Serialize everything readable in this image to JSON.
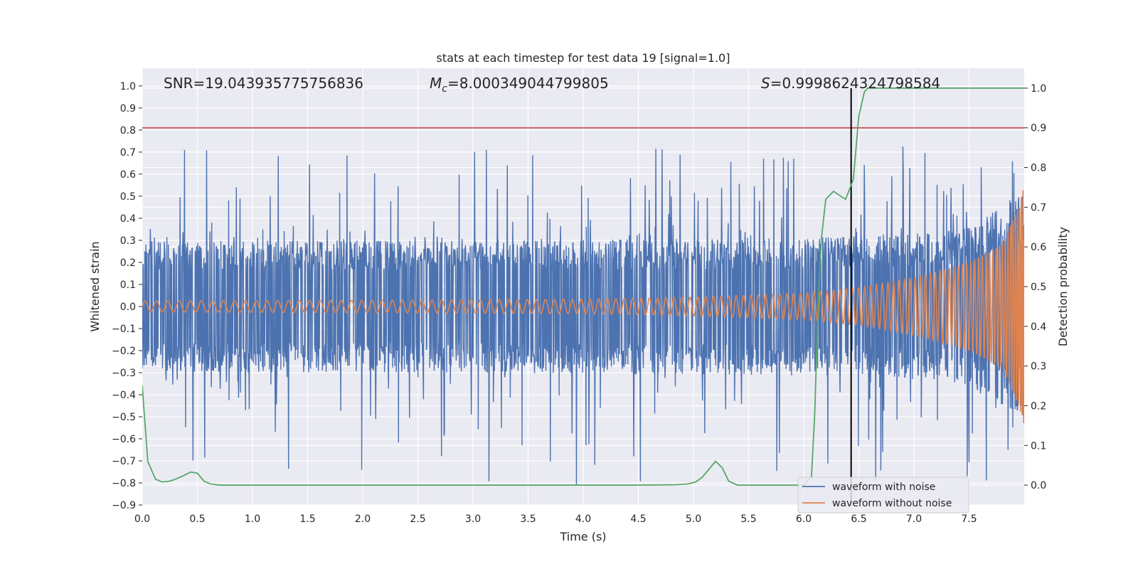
{
  "chart_data": {
    "type": "line",
    "title": "stats at each timestep for test data 19 [signal=1.0]",
    "xlabel": "Time (s)",
    "ylabel": "Whitened strain",
    "y2label": "Detection probability",
    "xlim": [
      0.0,
      8.0
    ],
    "ylim": [
      -0.9,
      1.08
    ],
    "y2lim": [
      -0.05,
      1.05
    ],
    "x_ticks": [
      "0.0",
      "0.5",
      "1.0",
      "1.5",
      "2.0",
      "2.5",
      "3.0",
      "3.5",
      "4.0",
      "4.5",
      "5.0",
      "5.5",
      "6.0",
      "6.5",
      "7.0",
      "7.5"
    ],
    "y_ticks": [
      "−0.9",
      "−0.8",
      "−0.7",
      "−0.6",
      "−0.5",
      "−0.4",
      "−0.3",
      "−0.2",
      "−0.1",
      "0.0",
      "0.1",
      "0.2",
      "0.3",
      "0.4",
      "0.5",
      "0.6",
      "0.7",
      "0.8",
      "0.9",
      "1.0"
    ],
    "y2_ticks": [
      "0.0",
      "0.1",
      "0.2",
      "0.3",
      "0.4",
      "0.5",
      "0.6",
      "0.7",
      "0.8",
      "0.9",
      "1.0"
    ],
    "grid": true,
    "legend_position": "lower-right",
    "annotations": {
      "snr": "SNR=19.043935775756836",
      "mc_symbol": "M",
      "mc_sub": "c",
      "mc_value": "=8.000349044799805",
      "s_symbol": "S",
      "s_value": "=0.9998624324798584"
    },
    "threshold_y2": 0.9,
    "event_time": 6.43,
    "series": [
      {
        "name": "waveform with noise",
        "color": "#4c72b0",
        "band_halfwidth": [
          [
            0.0,
            0.3
          ],
          [
            3.0,
            0.3
          ],
          [
            5.5,
            0.31
          ],
          [
            6.0,
            0.31
          ],
          [
            7.0,
            0.33
          ],
          [
            7.5,
            0.36
          ],
          [
            8.0,
            0.52
          ]
        ],
        "spike_max": 0.73,
        "spike_min": -0.81
      },
      {
        "name": "waveform without noise",
        "color": "#dd8452",
        "amplitude_envelope": [
          [
            0.0,
            0.025
          ],
          [
            2.0,
            0.028
          ],
          [
            4.0,
            0.033
          ],
          [
            5.0,
            0.042
          ],
          [
            6.0,
            0.06
          ],
          [
            6.5,
            0.085
          ],
          [
            7.0,
            0.13
          ],
          [
            7.5,
            0.2
          ],
          [
            7.8,
            0.28
          ],
          [
            7.95,
            0.45
          ],
          [
            8.0,
            0.55
          ]
        ]
      },
      {
        "name": "detection probability",
        "color": "#55a868",
        "x": [
          0.0,
          0.05,
          0.12,
          0.18,
          0.25,
          0.3,
          0.36,
          0.44,
          0.5,
          0.56,
          0.62,
          0.7,
          1.0,
          2.0,
          3.0,
          4.0,
          4.5,
          4.85,
          4.95,
          5.02,
          5.08,
          5.14,
          5.2,
          5.26,
          5.32,
          5.4,
          5.5,
          6.0,
          6.07,
          6.1,
          6.13,
          6.16,
          6.2,
          6.27,
          6.38,
          6.45,
          6.5,
          6.55,
          6.58,
          7.0,
          7.5,
          8.0
        ],
        "y": [
          0.25,
          0.06,
          0.015,
          0.008,
          0.01,
          0.015,
          0.022,
          0.033,
          0.03,
          0.01,
          0.003,
          0.0,
          0.0,
          0.0,
          0.0,
          0.0,
          0.0,
          0.001,
          0.003,
          0.008,
          0.02,
          0.04,
          0.06,
          0.044,
          0.01,
          0.0,
          0.0,
          0.0,
          0.02,
          0.18,
          0.45,
          0.62,
          0.72,
          0.74,
          0.72,
          0.77,
          0.93,
          0.99,
          1.0,
          1.0,
          1.0,
          1.0
        ]
      }
    ]
  },
  "legend": {
    "item1": "waveform with noise",
    "item2": "waveform without noise"
  }
}
